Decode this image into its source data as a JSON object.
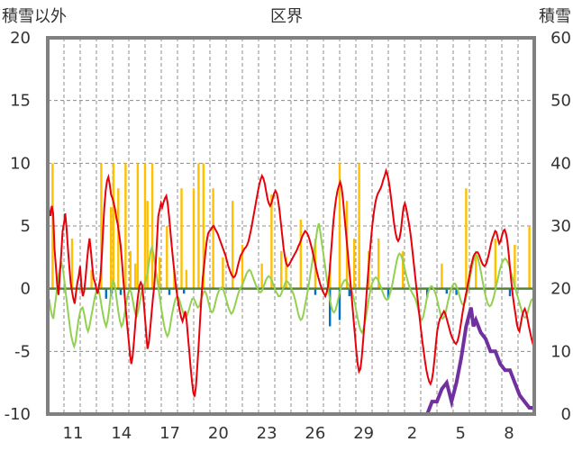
{
  "chart_data": {
    "type": "line",
    "title": "区界",
    "left_axis_label": "積雪以外",
    "right_axis_label": "積雪",
    "y_ticks": [
      "20",
      "15",
      "10",
      "5",
      "0",
      "-5",
      "-10"
    ],
    "y2_ticks": [
      "60",
      "50",
      "40",
      "30",
      "20",
      "10",
      "0"
    ],
    "x_ticks": [
      "11",
      "14",
      "17",
      "20",
      "23",
      "26",
      "29",
      "2",
      "5",
      "8"
    ],
    "ylim": [
      -10,
      20
    ],
    "y2lim": [
      0,
      60
    ],
    "grid": true,
    "colors": {
      "red_line": "#e8000b",
      "green_line": "#92d050",
      "orange_bars": "#ffc000",
      "blue_bars": "#0070c0",
      "purple_line": "#7030a0",
      "zero_line": "#548235",
      "frame": "#808080"
    },
    "red_series": [
      7.2,
      6.3,
      5.8,
      6.6,
      6.0,
      3.2,
      1.8,
      0.3,
      -0.5,
      1.2,
      2.8,
      4.6,
      5.2,
      6.0,
      4.8,
      3.2,
      1.8,
      0.5,
      -0.2,
      -0.8,
      -1.2,
      -0.3,
      0.5,
      1.0,
      1.8,
      0.2,
      -0.6,
      -0.2,
      0.8,
      2.1,
      3.2,
      4.0,
      3.0,
      1.8,
      0.8,
      0.5,
      0.0,
      -0.4,
      0.2,
      0.8,
      2.3,
      4.5,
      6.5,
      7.8,
      8.6,
      8.9,
      8.3,
      7.5,
      7.2,
      6.8,
      6.3,
      5.6,
      5.1,
      4.3,
      3.5,
      2.2,
      0.8,
      -0.5,
      -1.8,
      -3.0,
      -4.1,
      -5.2,
      -6.0,
      -5.4,
      -4.2,
      -2.8,
      -1.5,
      -0.6,
      0.2,
      0.5,
      0.3,
      -0.8,
      -2.1,
      -3.5,
      -4.8,
      -4.3,
      -3.2,
      -2.0,
      -0.8,
      0.2,
      1.8,
      3.8,
      5.8,
      6.3,
      6.8,
      6.5,
      6.9,
      7.2,
      7.4,
      6.8,
      5.8,
      4.6,
      3.4,
      2.3,
      1.3,
      0.3,
      -0.5,
      -1.2,
      -1.8,
      -2.3,
      -2.6,
      -2.2,
      -1.8,
      -2.5,
      -3.8,
      -5.0,
      -6.3,
      -7.4,
      -8.3,
      -8.6,
      -7.8,
      -6.2,
      -4.5,
      -2.6,
      -0.8,
      0.8,
      1.8,
      2.9,
      3.8,
      4.4,
      4.6,
      4.7,
      4.9,
      5.0,
      4.8,
      4.6,
      4.4,
      4.1,
      3.8,
      3.5,
      3.2,
      2.9,
      2.6,
      2.2,
      1.8,
      1.5,
      1.2,
      1.0,
      0.9,
      1.0,
      1.3,
      1.8,
      2.2,
      2.6,
      2.8,
      3.0,
      3.2,
      3.3,
      3.5,
      3.8,
      4.3,
      4.8,
      5.4,
      6.0,
      6.6,
      7.2,
      7.8,
      8.3,
      8.7,
      9.0,
      8.8,
      8.4,
      7.8,
      7.2,
      6.8,
      6.6,
      6.8,
      7.2,
      7.6,
      7.8,
      7.6,
      7.0,
      6.2,
      5.2,
      4.2,
      3.2,
      2.5,
      2.0,
      1.8,
      1.9,
      2.1,
      2.3,
      2.5,
      2.7,
      2.9,
      3.1,
      3.4,
      3.6,
      3.9,
      4.2,
      4.4,
      4.6,
      4.5,
      4.3,
      4.0,
      3.6,
      3.2,
      2.7,
      2.2,
      1.7,
      1.2,
      0.8,
      0.4,
      0.1,
      -0.2,
      -0.4,
      -0.6,
      -0.3,
      0.2,
      1.2,
      2.6,
      4.0,
      5.4,
      6.4,
      7.2,
      7.8,
      8.2,
      8.5,
      8.1,
      7.2,
      6.0,
      4.8,
      3.6,
      2.4,
      1.2,
      0.0,
      -1.3,
      -2.6,
      -3.8,
      -5.0,
      -6.0,
      -6.6,
      -6.4,
      -5.5,
      -4.2,
      -2.8,
      -1.3,
      0.2,
      1.6,
      2.9,
      4.1,
      5.2,
      6.1,
      6.8,
      7.3,
      7.6,
      7.8,
      8.0,
      8.3,
      8.7,
      9.0,
      9.4,
      9.1,
      8.6,
      7.9,
      7.0,
      6.1,
      5.2,
      4.5,
      4.0,
      3.8,
      4.0,
      4.6,
      5.6,
      6.5,
      6.8,
      6.4,
      5.8,
      5.2,
      4.5,
      3.6,
      2.6,
      1.6,
      0.6,
      -0.4,
      -1.4,
      -2.4,
      -3.3,
      -4.2,
      -5.0,
      -5.8,
      -6.5,
      -7.0,
      -7.4,
      -7.6,
      -7.3,
      -6.6,
      -5.6,
      -4.4,
      -3.4,
      -2.8,
      -2.4,
      -2.2,
      -2.0,
      -1.8,
      -2.0,
      -2.4,
      -2.8,
      -3.2,
      -3.6,
      -3.9,
      -4.1,
      -4.3,
      -4.4,
      -4.2,
      -3.8,
      -3.2,
      -2.5,
      -1.8,
      -1.2,
      -0.6,
      -0.1,
      0.5,
      1.1,
      1.7,
      2.2,
      2.6,
      2.8,
      2.9,
      2.9,
      2.7,
      2.4,
      2.1,
      1.9,
      1.8,
      1.9,
      2.2,
      2.6,
      3.1,
      3.6,
      4.0,
      4.3,
      4.6,
      4.5,
      4.0,
      3.6,
      3.8,
      4.2,
      4.6,
      4.7,
      4.4,
      3.8,
      2.8,
      1.6,
      0.5,
      -0.5,
      -1.3,
      -2.0,
      -2.8,
      -3.2,
      -3.4,
      -2.8,
      -2.2,
      -1.8,
      -1.6,
      -1.9,
      -2.4,
      -3.0,
      -3.5,
      -4.0,
      -4.4,
      -4.7
    ],
    "green_series": [
      -1.2,
      -0.8,
      -1.6,
      -2.1,
      -2.4,
      -1.5,
      -0.6,
      0.4,
      1.2,
      1.8,
      2.0,
      1.5,
      0.6,
      -0.4,
      -1.3,
      -2.2,
      -3.1,
      -3.8,
      -4.3,
      -4.6,
      -4.2,
      -3.4,
      -2.6,
      -2.0,
      -1.6,
      -1.5,
      -1.9,
      -2.5,
      -3.1,
      -3.4,
      -3.0,
      -2.4,
      -1.8,
      -1.2,
      -0.6,
      -0.2,
      0.0,
      -0.3,
      -0.9,
      -1.6,
      -2.2,
      -2.7,
      -3.0,
      -2.6,
      -1.8,
      -0.8,
      0.2,
      0.6,
      0.4,
      -0.3,
      -1.2,
      -2.0,
      -2.6,
      -3.0,
      -2.8,
      -2.2,
      -1.5,
      -0.8,
      -0.3,
      -0.1,
      -0.3,
      -0.8,
      -1.5,
      -2.0,
      -2.2,
      -1.8,
      -1.2,
      -0.6,
      -0.1,
      0.2,
      0.5,
      0.8,
      1.4,
      2.2,
      3.0,
      3.3,
      2.8,
      2.1,
      1.3,
      0.6,
      -0.2,
      -1.0,
      -1.8,
      -2.5,
      -3.1,
      -3.5,
      -3.8,
      -3.6,
      -3.0,
      -2.3,
      -1.7,
      -1.2,
      -0.8,
      -0.6,
      -0.7,
      -1.0,
      -1.4,
      -1.8,
      -2.1,
      -2.3,
      -2.2,
      -1.9,
      -1.5,
      -1.1,
      -0.8,
      -0.8,
      -1.0,
      -1.3,
      -1.5,
      -1.4,
      -1.0,
      -0.6,
      -0.3,
      -0.2,
      -0.4,
      -0.8,
      -1.3,
      -1.7,
      -1.9,
      -1.8,
      -1.4,
      -0.9,
      -0.5,
      -0.2,
      0.0,
      0.1,
      0.0,
      -0.3,
      -0.7,
      -1.1,
      -1.5,
      -1.8,
      -2.0,
      -1.9,
      -1.6,
      -1.2,
      -0.8,
      -0.4,
      -0.1,
      0.1,
      0.3,
      0.6,
      0.9,
      1.2,
      1.4,
      1.5,
      1.4,
      1.1,
      0.8,
      0.5,
      0.2,
      0.0,
      -0.2,
      -0.3,
      -0.2,
      0.1,
      0.4,
      0.7,
      0.9,
      1.0,
      0.9,
      0.7,
      0.4,
      0.1,
      -0.2,
      -0.4,
      -0.6,
      -0.6,
      -0.4,
      -0.1,
      0.2,
      0.5,
      0.6,
      0.5,
      0.3,
      0.1,
      -0.2,
      -0.5,
      -0.9,
      -1.4,
      -1.9,
      -2.3,
      -2.5,
      -2.4,
      -2.0,
      -1.4,
      -0.8,
      -0.2,
      0.5,
      1.2,
      1.9,
      2.6,
      3.3,
      4.0,
      4.8,
      5.2,
      4.6,
      3.8,
      3.0,
      2.2,
      1.4,
      0.6,
      -0.2,
      -0.9,
      -1.4,
      -1.8,
      -1.9,
      -1.7,
      -1.3,
      -0.8,
      -0.3,
      0.1,
      0.4,
      0.6,
      0.7,
      0.6,
      0.4,
      0.2,
      0.0,
      -0.3,
      -0.7,
      -1.2,
      -1.8,
      -2.4,
      -2.9,
      -3.3,
      -3.5,
      -3.3,
      -2.8,
      -2.2,
      -1.5,
      -0.8,
      -0.2,
      0.3,
      0.6,
      0.8,
      0.9,
      0.8,
      0.6,
      0.3,
      0.0,
      -0.3,
      -0.6,
      -0.8,
      -0.9,
      -0.8,
      -0.5,
      -0.1,
      0.4,
      1.0,
      1.6,
      2.2,
      2.6,
      2.8,
      2.7,
      2.4,
      2.0,
      1.5,
      1.0,
      0.6,
      0.2,
      -0.1,
      -0.3,
      -0.5,
      -0.7,
      -1.0,
      -1.4,
      -1.9,
      -2.3,
      -2.5,
      -2.3,
      -1.8,
      -1.2,
      -0.6,
      -0.2,
      0.1,
      0.2,
      0.1,
      -0.1,
      -0.4,
      -0.8,
      -1.3,
      -1.8,
      -2.2,
      -2.4,
      -2.3,
      -2.0,
      -1.5,
      -1.0,
      -0.5,
      -0.1,
      0.2,
      0.4,
      0.4,
      0.2,
      -0.1,
      -0.5,
      -0.9,
      -1.2,
      -1.3,
      -1.1,
      -0.7,
      -0.2,
      0.4,
      1.0,
      1.6,
      2.1,
      2.5,
      2.7,
      2.6,
      2.2,
      1.7,
      1.1,
      0.5,
      -0.1,
      -0.6,
      -1.0,
      -1.3,
      -1.4,
      -1.3,
      -1.0,
      -0.6,
      -0.1,
      0.4,
      0.9,
      1.4,
      1.8,
      2.1,
      2.3,
      2.4,
      2.3,
      2.1,
      1.8,
      1.4,
      1.0,
      0.6,
      0.2,
      -0.2,
      -0.6,
      -1.0,
      -1.4,
      -1.8,
      -2.1,
      -2.3,
      -2.3,
      -2.0,
      -1.6,
      -1.2,
      -0.9,
      -0.8,
      -0.9
    ],
    "orange_bars": [
      [
        0.01,
        10
      ],
      [
        0.05,
        4
      ],
      [
        0.09,
        1.5
      ],
      [
        0.11,
        10
      ],
      [
        0.13,
        6.5
      ],
      [
        0.135,
        10
      ],
      [
        0.145,
        8
      ],
      [
        0.16,
        10
      ],
      [
        0.17,
        3
      ],
      [
        0.18,
        2
      ],
      [
        0.185,
        10
      ],
      [
        0.2,
        10
      ],
      [
        0.205,
        7
      ],
      [
        0.215,
        10
      ],
      [
        0.23,
        2.5
      ],
      [
        0.245,
        5
      ],
      [
        0.26,
        1.5
      ],
      [
        0.275,
        8
      ],
      [
        0.285,
        1.5
      ],
      [
        0.3,
        8
      ],
      [
        0.31,
        10
      ],
      [
        0.32,
        10
      ],
      [
        0.34,
        8
      ],
      [
        0.36,
        2.5
      ],
      [
        0.38,
        7
      ],
      [
        0.4,
        3.5
      ],
      [
        0.44,
        2
      ],
      [
        0.46,
        7.5
      ],
      [
        0.48,
        3
      ],
      [
        0.49,
        2.5
      ],
      [
        0.52,
        5.5
      ],
      [
        0.55,
        4
      ],
      [
        0.58,
        2
      ],
      [
        0.6,
        4.5
      ],
      [
        0.6,
        10
      ],
      [
        0.615,
        7
      ],
      [
        0.63,
        4
      ],
      [
        0.64,
        10
      ],
      [
        0.66,
        3
      ],
      [
        0.68,
        4
      ],
      [
        0.73,
        3
      ],
      [
        0.81,
        2
      ],
      [
        0.86,
        8
      ],
      [
        0.88,
        3
      ],
      [
        0.92,
        4
      ],
      [
        0.96,
        3.5
      ],
      [
        0.99,
        5
      ]
    ],
    "blue_bars": [
      [
        0.02,
        -0.4
      ],
      [
        0.12,
        -0.8
      ],
      [
        0.13,
        -0.6
      ],
      [
        0.15,
        -0.5
      ],
      [
        0.25,
        -0.5
      ],
      [
        0.28,
        -0.4
      ],
      [
        0.55,
        -0.5
      ],
      [
        0.58,
        -3
      ],
      [
        0.6,
        -2.5
      ],
      [
        0.62,
        -0.6
      ],
      [
        0.7,
        -0.8
      ],
      [
        0.78,
        -0.7
      ],
      [
        0.82,
        -0.4
      ],
      [
        0.84,
        -0.5
      ],
      [
        0.95,
        -0.6
      ]
    ],
    "purple_series": [
      [
        0.0,
        0
      ],
      [
        0.78,
        0
      ],
      [
        0.79,
        2
      ],
      [
        0.8,
        2
      ],
      [
        0.81,
        4
      ],
      [
        0.82,
        5
      ],
      [
        0.83,
        2
      ],
      [
        0.84,
        5
      ],
      [
        0.85,
        9
      ],
      [
        0.86,
        14
      ],
      [
        0.87,
        17
      ],
      [
        0.875,
        14
      ],
      [
        0.88,
        15
      ],
      [
        0.89,
        13
      ],
      [
        0.9,
        12
      ],
      [
        0.91,
        10
      ],
      [
        0.92,
        10
      ],
      [
        0.93,
        8
      ],
      [
        0.94,
        7
      ],
      [
        0.95,
        7
      ],
      [
        0.96,
        5
      ],
      [
        0.97,
        3
      ],
      [
        0.98,
        2
      ],
      [
        0.99,
        1
      ],
      [
        1.0,
        1
      ]
    ]
  }
}
